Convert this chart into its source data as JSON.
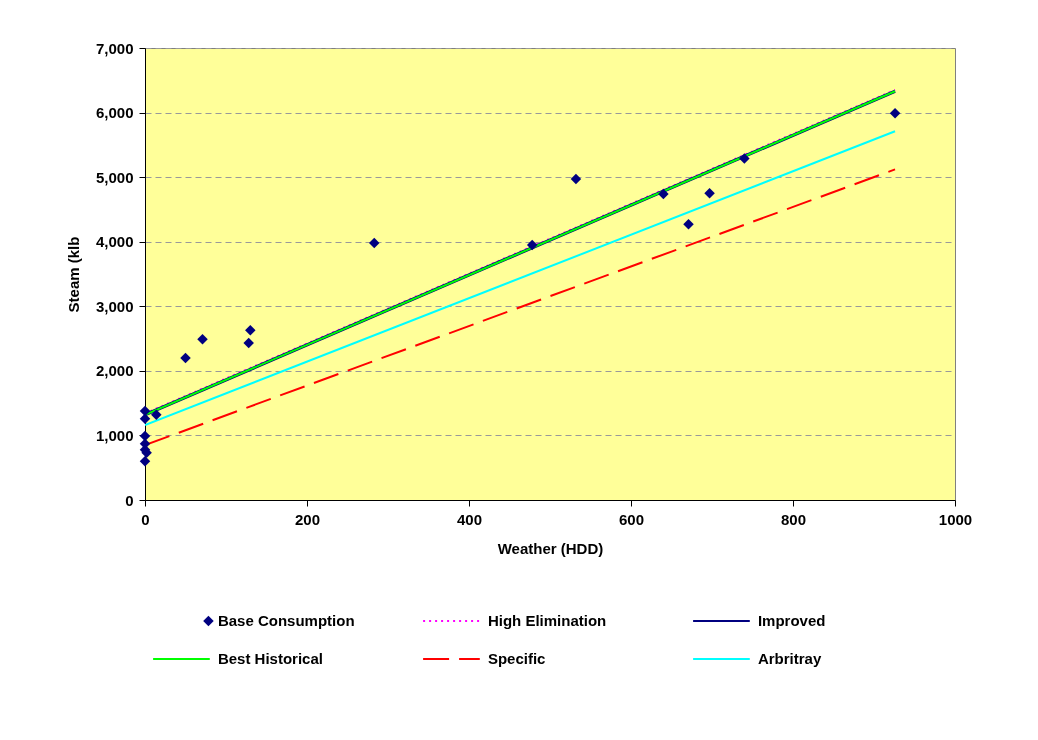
{
  "chart_data": {
    "type": "line",
    "xlabel": "Weather (HDD)",
    "ylabel": "Steam (klb",
    "xlim": [
      0,
      1000
    ],
    "xticks": [
      0,
      200,
      400,
      600,
      800,
      {
        "value": 1000,
        "label": "1000"
      }
    ],
    "ylim": [
      0,
      7000
    ],
    "yticks": [
      {
        "value": 0,
        "label": "0"
      },
      {
        "value": 1000,
        "label": "1,000"
      },
      {
        "value": 2000,
        "label": "2,000"
      },
      {
        "value": 3000,
        "label": "3,000"
      },
      {
        "value": 4000,
        "label": "4,000"
      },
      {
        "value": 5000,
        "label": "5,000"
      },
      {
        "value": 6000,
        "label": "6,000"
      },
      {
        "value": 7000,
        "label": "7,000"
      }
    ],
    "grid": "y",
    "legend": "bottom",
    "series": [
      {
        "name": "Base Consumption",
        "type": "scatter",
        "marker": "diamond",
        "color": "#000080",
        "x": [
          0,
          0,
          0,
          0,
          0,
          2,
          0,
          14,
          50,
          71,
          128,
          130,
          283,
          478,
          532,
          640,
          671,
          697,
          740,
          926
        ],
        "values": [
          1380,
          1260,
          990,
          870,
          780,
          730,
          600,
          1320,
          2200,
          2490,
          2430,
          2630,
          3980,
          3950,
          4970,
          4740,
          4270,
          4750,
          5290,
          5990
        ]
      },
      {
        "name": "High Elimination",
        "line_style": "dotted",
        "color": "#ff00ff",
        "x": [
          0,
          926
        ],
        "values": [
          1340,
          6350
        ]
      },
      {
        "name": "Improved",
        "line_style": "solid",
        "color": "#000080",
        "x": [
          0,
          926
        ],
        "values": [
          1320,
          6330
        ]
      },
      {
        "name": "Best Historical",
        "line_style": "solid",
        "color": "#00ff00",
        "x": [
          0,
          926
        ],
        "values": [
          1320,
          6330
        ]
      },
      {
        "name": "Specific",
        "line_style": "dashed",
        "color": "#ff0000",
        "x": [
          0,
          926
        ],
        "values": [
          850,
          5120
        ]
      },
      {
        "name": "Arbritray",
        "line_style": "solid",
        "color": "#00ffff",
        "x": [
          0,
          926
        ],
        "values": [
          1160,
          5710
        ]
      }
    ]
  }
}
